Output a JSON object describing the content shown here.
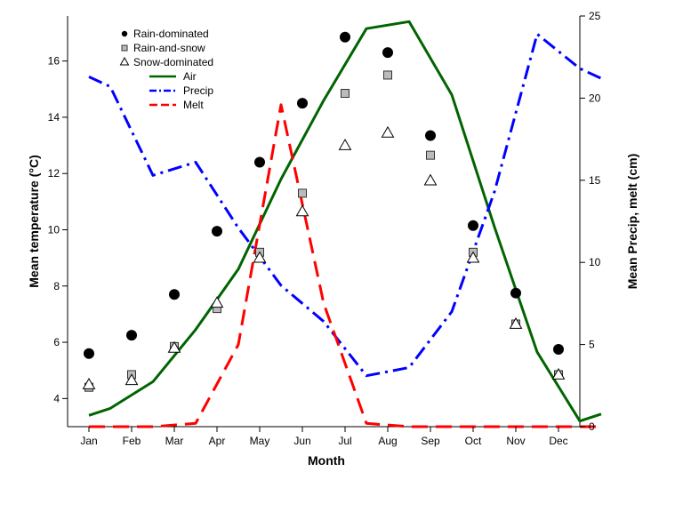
{
  "chart_data": {
    "type": "line",
    "categories": [
      "Jan",
      "Feb",
      "Mar",
      "Apr",
      "May",
      "Jun",
      "Jul",
      "Aug",
      "Sep",
      "Oct",
      "Nov",
      "Dec"
    ],
    "xlabel": "Month",
    "ylabel": "Mean temperature (°C)",
    "y2label": "Mean Precip, melt (cm)",
    "ylim": [
      3,
      17.6
    ],
    "yticks": [
      4,
      6,
      8,
      10,
      12,
      14,
      16
    ],
    "y2lim": [
      0,
      25
    ],
    "y2ticks": [
      0,
      5,
      10,
      15,
      20,
      25
    ],
    "legend_position": "top-left",
    "grid": false,
    "series": [
      {
        "name": "Rain-dominated",
        "kind": "point",
        "marker": "circle",
        "axis": "left",
        "values": [
          5.6,
          6.25,
          7.7,
          9.95,
          12.4,
          14.5,
          16.85,
          16.3,
          13.35,
          10.15,
          7.75,
          5.75
        ]
      },
      {
        "name": "Rain-and-snow",
        "kind": "point",
        "marker": "square",
        "axis": "left",
        "values": [
          4.4,
          4.85,
          5.85,
          7.2,
          9.2,
          11.3,
          14.85,
          15.5,
          12.65,
          9.2,
          6.65,
          4.85
        ]
      },
      {
        "name": "Snow-dominated",
        "kind": "point",
        "marker": "triangle",
        "axis": "left",
        "values": [
          4.5,
          4.65,
          5.8,
          7.4,
          9.0,
          10.65,
          13.0,
          13.45,
          11.75,
          9.0,
          6.65,
          4.85
        ]
      },
      {
        "name": "Air",
        "kind": "line",
        "color": "#006400",
        "dash": "solid",
        "axis": "left",
        "points": [
          [
            0.5,
            3.4
          ],
          [
            1,
            3.65
          ],
          [
            2,
            4.6
          ],
          [
            3,
            6.45
          ],
          [
            4,
            8.6
          ],
          [
            5,
            11.8
          ],
          [
            6,
            14.6
          ],
          [
            7,
            17.15
          ],
          [
            8,
            17.4
          ],
          [
            9,
            14.8
          ],
          [
            10,
            10.1
          ],
          [
            11,
            5.65
          ],
          [
            12,
            3.2
          ],
          [
            12.5,
            3.45
          ]
        ]
      },
      {
        "name": "Precip",
        "kind": "line",
        "color": "#0000ff",
        "dash": "dashdot",
        "axis": "right",
        "points": [
          [
            0.5,
            21.3
          ],
          [
            1,
            20.7
          ],
          [
            2,
            15.3
          ],
          [
            3,
            16.1
          ],
          [
            4,
            12.1
          ],
          [
            5,
            8.6
          ],
          [
            6,
            6.4
          ],
          [
            7,
            3.1
          ],
          [
            8,
            3.6
          ],
          [
            9,
            7.0
          ],
          [
            10,
            14.3
          ],
          [
            11,
            23.9
          ],
          [
            12,
            21.8
          ],
          [
            12.5,
            21.2
          ]
        ]
      },
      {
        "name": "Melt",
        "kind": "line",
        "color": "#ff0000",
        "dash": "dash",
        "axis": "right",
        "points": [
          [
            0.5,
            0
          ],
          [
            1,
            0
          ],
          [
            2,
            0
          ],
          [
            3,
            0.2
          ],
          [
            4,
            5.0
          ],
          [
            5,
            19.6
          ],
          [
            6,
            7.5
          ],
          [
            7,
            0.2
          ],
          [
            8,
            0
          ],
          [
            9,
            0
          ],
          [
            10,
            0
          ],
          [
            11,
            0
          ],
          [
            12,
            0
          ],
          [
            12.5,
            0
          ]
        ]
      }
    ]
  }
}
